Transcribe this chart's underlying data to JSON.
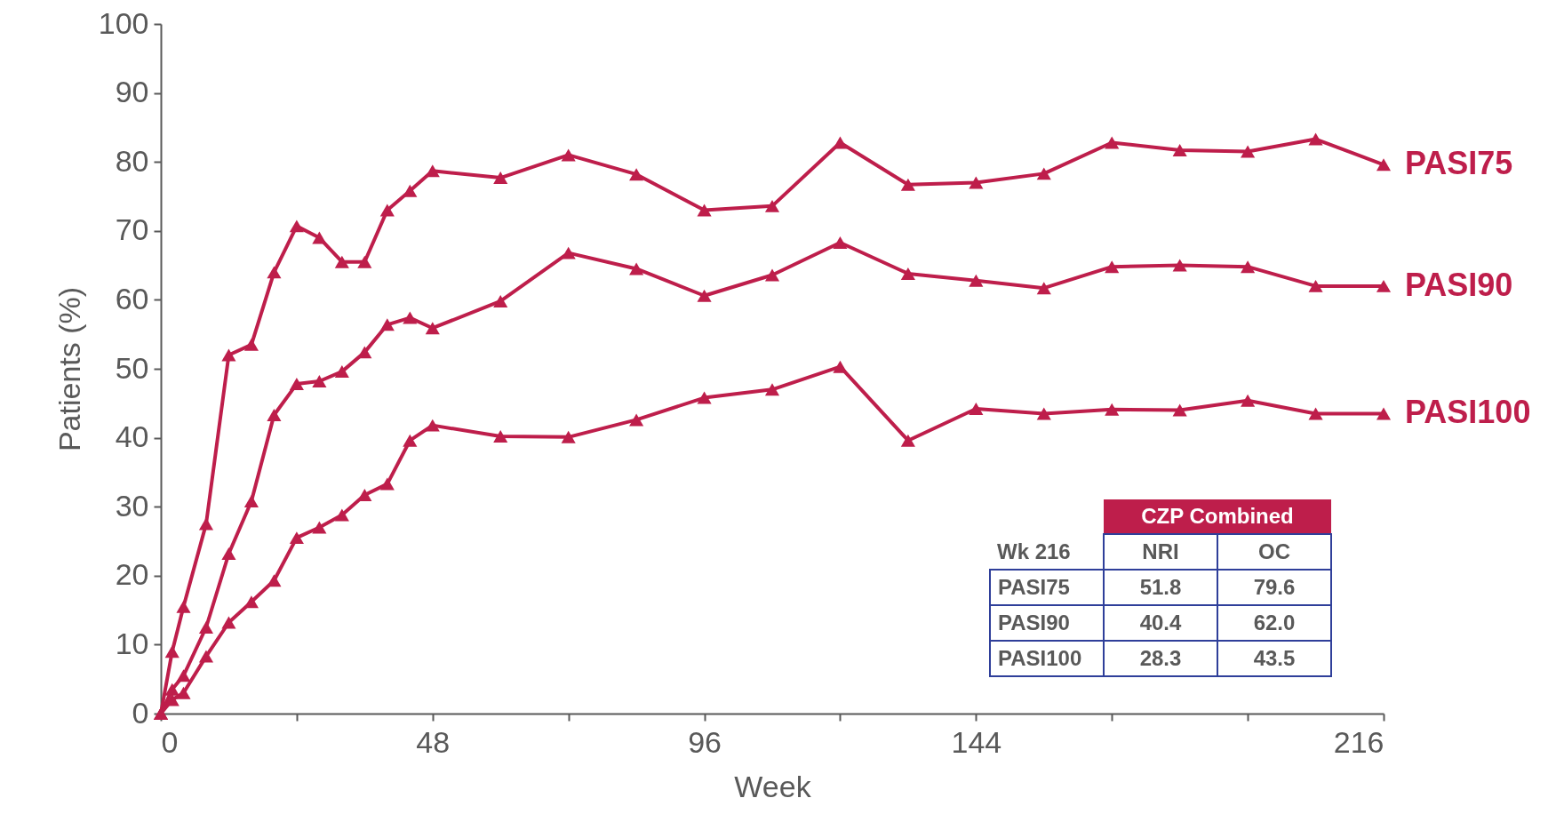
{
  "chart_data": {
    "type": "line",
    "xlabel": "Week",
    "ylabel": "Patients (%)",
    "x": [
      0,
      2,
      4,
      8,
      12,
      16,
      20,
      24,
      28,
      32,
      36,
      40,
      44,
      48,
      60,
      72,
      84,
      96,
      108,
      120,
      132,
      144,
      156,
      168,
      180,
      192,
      204,
      216
    ],
    "series": [
      {
        "name": "PASI75",
        "color": "#be1e4b",
        "values": [
          0,
          9,
          15.5,
          27.5,
          52,
          53.5,
          64,
          70.7,
          69,
          65.5,
          65.5,
          73,
          75.8,
          78.7,
          77.7,
          81,
          78.2,
          73,
          73.6,
          82.8,
          76.7,
          77,
          78.3,
          82.8,
          81.7,
          81.5,
          83.3,
          79.6
        ]
      },
      {
        "name": "PASI90",
        "color": "#be1e4b",
        "values": [
          0,
          3.5,
          5.5,
          12.5,
          23.2,
          30.8,
          43.3,
          47.8,
          48.2,
          49.6,
          52.4,
          56.4,
          57.4,
          55.9,
          59.8,
          66.8,
          64.5,
          60.6,
          63.6,
          68.3,
          63.8,
          62.8,
          61.7,
          64.8,
          65,
          64.8,
          62,
          62
        ]
      },
      {
        "name": "PASI100",
        "color": "#be1e4b",
        "values": [
          0,
          2,
          3,
          8.3,
          13.2,
          16.2,
          19.3,
          25.5,
          27,
          28.8,
          31.7,
          33.3,
          39.6,
          41.8,
          40.2,
          40.1,
          42.6,
          45.8,
          47,
          50.3,
          39.6,
          44.2,
          43.5,
          44.1,
          44,
          45.4,
          43.5,
          43.5
        ]
      }
    ],
    "xlim": [
      0,
      216
    ],
    "xticks": [
      0,
      {
        "value": 24,
        "label": null
      },
      48,
      {
        "value": 72,
        "label": null
      },
      96,
      {
        "value": 120,
        "label": null
      },
      144,
      {
        "value": 168,
        "label": null
      },
      {
        "value": 192,
        "label": null
      },
      216
    ],
    "ylim": [
      0,
      100
    ],
    "yticks": [
      0,
      10,
      20,
      30,
      40,
      50,
      60,
      70,
      80,
      90,
      100
    ],
    "grid": false,
    "legend": false,
    "marker": "triangle",
    "line_style": "solid",
    "annotations": [
      "CZP Combined",
      "Wk 216",
      "NRI",
      "OC",
      "PASI75",
      "51.8",
      "79.6",
      "PASI90",
      "40.4",
      "62.0",
      "PASI100",
      "28.3",
      "43.5"
    ]
  }
}
